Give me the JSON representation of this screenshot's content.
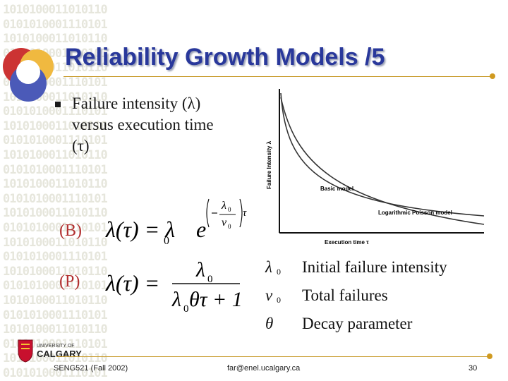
{
  "slide": {
    "title": "Reliability Growth Models /5",
    "bullet_lines": [
      "Failure intensity (λ)",
      "versus execution time",
      "(τ)"
    ],
    "background_binary": [
      "1010100011010110",
      "0101010001110101",
      "1010100011010110",
      "0101010001110101",
      "1010100011010110",
      "0101010001110101",
      "1010100011010110",
      "0101010001110101",
      "1010100011010110",
      "0101010001110101",
      "1010100011010110",
      "0101010001110101",
      "1010100011010110",
      "0101010001110101",
      "1010100011010110",
      "0101010001110101",
      "1010100011010110",
      "0101010001110101",
      "1010100011010110",
      "0101010001110101",
      "1010100011010110",
      "0101010001110101",
      "1010100011010110",
      "0101010001110101",
      "1010100011010110",
      "0101010001110101"
    ]
  },
  "equations": {
    "basic": {
      "label": "(B)",
      "lhs": "λ(τ) = λ",
      "lhs_sub": "0",
      "base": "e"
    },
    "poisson": {
      "label": "(P)",
      "lhs": "λ(τ) =",
      "num": "λ",
      "num_sub": "0",
      "den_a": "λ",
      "den_sub": "0",
      "den_b": "θτ + 1"
    }
  },
  "chart": {
    "ylabel": "Failure Intensity λ",
    "xlabel": "Execution time τ",
    "curve_labels": {
      "basic": "Basic model",
      "poisson": "Logarithmic Poisson model"
    }
  },
  "legend": [
    {
      "symbol": "λ",
      "sub": "0",
      "text": "Initial failure intensity"
    },
    {
      "symbol": "ν",
      "sub": "0",
      "text": "Total failures"
    },
    {
      "symbol": "θ",
      "sub": "",
      "text": "Decay parameter"
    }
  ],
  "footer": {
    "course": "SENG521 (Fall 2002)",
    "email": "far@enel.ucalgary.ca",
    "page": "30",
    "university": "UNIVERSITY OF",
    "university_name": "CALGARY"
  },
  "colors": {
    "title": "#29389b",
    "accent_rule": "#c89a2a",
    "label_red": "#b23030"
  },
  "icons": [
    "university-crest-icon",
    "decorative-circles-icon",
    "bullet-square-icon"
  ]
}
